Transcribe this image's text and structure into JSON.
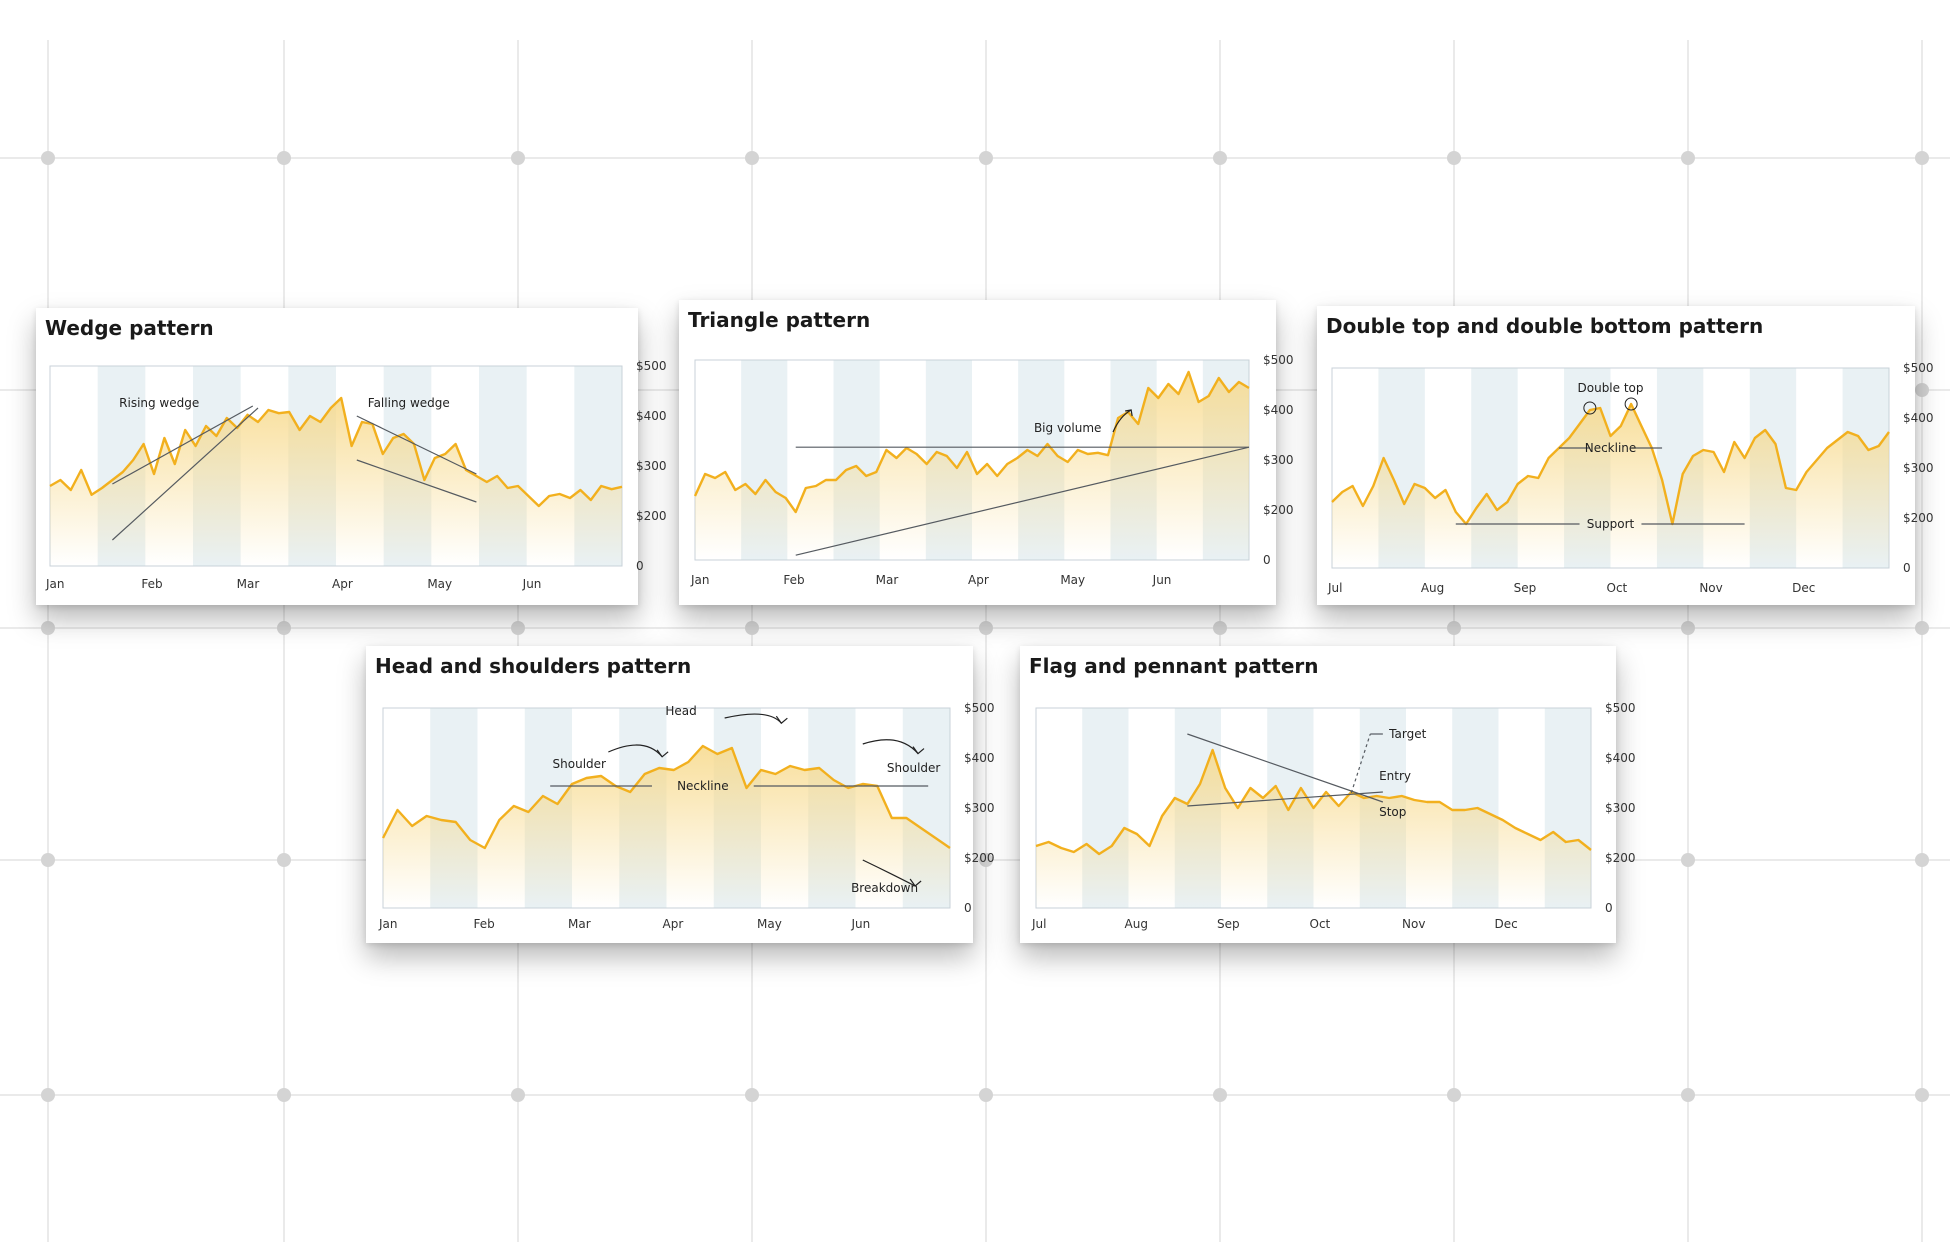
{
  "colors": {
    "accent": "#f2b01e",
    "fill": "#f7d98a",
    "band": "#e9f1f4",
    "axis": "#c8d2d8",
    "line": "#555a60",
    "grid": "#e4e4e4"
  },
  "background": {
    "style": "light grid with dots"
  },
  "chart_data": [
    {
      "id": "wedge",
      "type": "area",
      "title": "Wedge pattern",
      "x_labels": [
        "Jan",
        "Feb",
        "Mar",
        "Apr",
        "May",
        "Jun"
      ],
      "y_ticks": [
        "$500",
        "$400",
        "$300",
        "$200",
        "0"
      ],
      "ylim": [
        0,
        500
      ],
      "grid": false,
      "values": [
        200,
        215,
        190,
        240,
        178,
        195,
        215,
        235,
        265,
        305,
        230,
        320,
        255,
        340,
        300,
        350,
        325,
        370,
        345,
        378,
        360,
        390,
        382,
        385,
        340,
        375,
        360,
        395,
        420,
        300,
        360,
        355,
        280,
        320,
        330,
        305,
        215,
        270,
        280,
        305,
        240,
        225,
        210,
        225,
        195,
        200,
        175,
        150,
        175,
        180,
        170,
        190,
        165,
        200,
        192,
        198
      ],
      "annotations": [
        {
          "text": "Rising wedge"
        },
        {
          "text": "Falling wedge"
        }
      ]
    },
    {
      "id": "triangle",
      "type": "area",
      "title": "Triangle pattern",
      "x_labels": [
        "Jan",
        "Feb",
        "Mar",
        "Apr",
        "May",
        "Jun"
      ],
      "y_ticks": [
        "$500",
        "$400",
        "$300",
        "$200",
        "0"
      ],
      "ylim": [
        0,
        500
      ],
      "grid": false,
      "values": [
        160,
        215,
        205,
        220,
        175,
        190,
        165,
        200,
        170,
        155,
        120,
        180,
        185,
        200,
        200,
        225,
        235,
        210,
        220,
        275,
        255,
        280,
        265,
        240,
        270,
        260,
        230,
        270,
        215,
        240,
        210,
        240,
        255,
        275,
        260,
        290,
        260,
        245,
        275,
        265,
        268,
        262,
        355,
        370,
        340,
        430,
        405,
        440,
        415,
        470,
        395,
        410,
        455,
        420,
        445,
        430
      ],
      "annotations": [
        {
          "text": "Big volume"
        }
      ]
    },
    {
      "id": "double",
      "type": "area",
      "title": "Double top and double bottom pattern",
      "x_labels": [
        "Jul",
        "Aug",
        "Sep",
        "Oct",
        "Nov",
        "Dec"
      ],
      "y_ticks": [
        "$500",
        "$400",
        "$300",
        "$200",
        "0"
      ],
      "ylim": [
        0,
        500
      ],
      "grid": false,
      "values": [
        165,
        190,
        205,
        155,
        205,
        275,
        220,
        160,
        210,
        200,
        175,
        195,
        140,
        110,
        150,
        185,
        145,
        165,
        210,
        230,
        225,
        275,
        300,
        325,
        360,
        395,
        400,
        330,
        355,
        410,
        355,
        300,
        220,
        110,
        235,
        280,
        295,
        290,
        240,
        315,
        275,
        325,
        345,
        310,
        200,
        195,
        240,
        270,
        300,
        320,
        340,
        330,
        295,
        305,
        340
      ],
      "annotations": [
        {
          "text": "Double top"
        },
        {
          "text": "Neckline"
        },
        {
          "text": "Support"
        }
      ]
    },
    {
      "id": "hs",
      "type": "area",
      "title": "Head and shoulders pattern",
      "x_labels": [
        "Jan",
        "Feb",
        "Mar",
        "Apr",
        "May",
        "Jun"
      ],
      "y_ticks": [
        "$500",
        "$400",
        "$300",
        "$200",
        "0"
      ],
      "ylim": [
        0,
        500
      ],
      "grid": false,
      "values": [
        175,
        245,
        205,
        230,
        220,
        215,
        170,
        150,
        220,
        255,
        240,
        280,
        260,
        310,
        325,
        330,
        305,
        290,
        335,
        350,
        345,
        365,
        405,
        385,
        400,
        300,
        345,
        335,
        355,
        345,
        350,
        320,
        300,
        310,
        305,
        225,
        225,
        200,
        175,
        150
      ],
      "annotations": [
        {
          "text": "Head"
        },
        {
          "text": "Shoulder"
        },
        {
          "text": "Shoulder"
        },
        {
          "text": "Neckline"
        },
        {
          "text": "Breakdown"
        }
      ]
    },
    {
      "id": "flag",
      "type": "area",
      "title": "Flag and pennant pattern",
      "x_labels": [
        "Jul",
        "Aug",
        "Sep",
        "Oct",
        "Nov",
        "Dec"
      ],
      "y_ticks": [
        "$500",
        "$400",
        "$300",
        "$200",
        "0"
      ],
      "ylim": [
        0,
        500
      ],
      "grid": false,
      "values": [
        155,
        165,
        150,
        140,
        160,
        135,
        155,
        200,
        185,
        155,
        230,
        275,
        260,
        310,
        395,
        300,
        250,
        300,
        275,
        305,
        245,
        300,
        250,
        290,
        255,
        290,
        275,
        280,
        275,
        280,
        270,
        265,
        265,
        245,
        245,
        250,
        235,
        220,
        200,
        185,
        170,
        190,
        165,
        170,
        145
      ],
      "annotations": [
        {
          "text": "Target"
        },
        {
          "text": "Entry"
        },
        {
          "text": "Stop"
        }
      ]
    }
  ]
}
